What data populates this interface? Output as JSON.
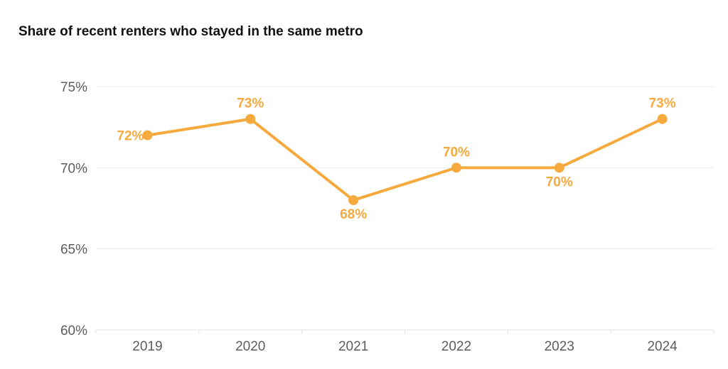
{
  "chart_data": {
    "type": "line",
    "title": "Share of recent renters who stayed in the same metro",
    "xlabel": "",
    "ylabel": "",
    "categories": [
      "2019",
      "2020",
      "2021",
      "2022",
      "2023",
      "2024"
    ],
    "series": [
      {
        "values": [
          72,
          73,
          68,
          70,
          70,
          73
        ],
        "labels": [
          "72%",
          "73%",
          "68%",
          "70%",
          "70%",
          "73%"
        ],
        "label_positions": [
          "left",
          "above",
          "below",
          "above",
          "below",
          "above"
        ]
      }
    ],
    "ylim": [
      60,
      75
    ],
    "yticks": [
      60,
      65,
      70,
      75
    ],
    "ytick_labels": [
      "60%",
      "65%",
      "70%",
      "75%"
    ],
    "grid": true,
    "colors": {
      "line": "#f6aa3d",
      "text": "#f6aa3d"
    }
  }
}
